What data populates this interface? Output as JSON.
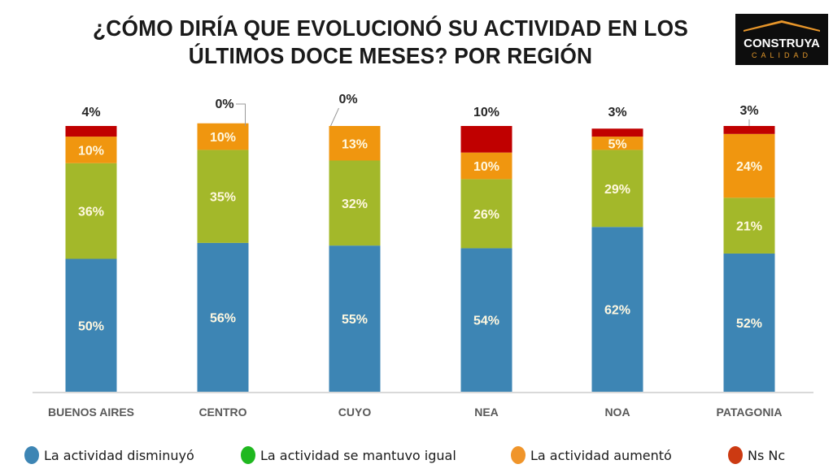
{
  "title_line1": "¿CÓMO DIRÍA QUE EVOLUCIONÓ SU ACTIVIDAD EN LOS",
  "title_line2": "ÚLTIMOS DOCE MESES? POR REGIÓN",
  "logo": {
    "brand": "CONSTRUYA",
    "sub": "CALIDAD",
    "roof_color": "#e8962a"
  },
  "legend": [
    {
      "label": "La actividad disminuyó",
      "color": "#3d85b4"
    },
    {
      "label": "La actividad se mantuvo igual",
      "color": "#1fb81f"
    },
    {
      "label": "La actividad aumentó",
      "color": "#f0952a"
    },
    {
      "label": "Ns Nc",
      "color": "#cc3a12"
    }
  ],
  "chart_data": {
    "type": "bar",
    "stacked": true,
    "title": "¿CÓMO DIRÍA QUE EVOLUCIONÓ SU ACTIVIDAD EN LOS ÚLTIMOS DOCE MESES? POR REGIÓN",
    "xlabel": "",
    "ylabel": "",
    "ylim": [
      0,
      100
    ],
    "grid": false,
    "legend_position": "bottom",
    "categories": [
      "BUENOS AIRES",
      "CENTRO",
      "CUYO",
      "NEA",
      "NOA",
      "PATAGONIA"
    ],
    "series": [
      {
        "name": "La actividad disminuyó",
        "color": "#3d85b4",
        "values": [
          50,
          56,
          55,
          54,
          62,
          52
        ],
        "labels": [
          "50%",
          "56%",
          "55%",
          "54%",
          "62%",
          "52%"
        ]
      },
      {
        "name": "La actividad se mantuvo igual",
        "color": "#a3b82a",
        "values": [
          36,
          35,
          32,
          26,
          29,
          21
        ],
        "labels": [
          "36%",
          "35%",
          "32%",
          "26%",
          "29%",
          "21%"
        ]
      },
      {
        "name": "La actividad aumentó",
        "color": "#f0960f",
        "values": [
          10,
          10,
          13,
          10,
          5,
          24
        ],
        "labels": [
          "10%",
          "10%",
          "13%",
          "10%",
          "5%",
          "24%"
        ]
      },
      {
        "name": "Ns Nc",
        "color": "#c00000",
        "values": [
          4,
          0,
          0,
          10,
          3,
          3
        ],
        "labels": [
          "4%",
          "0%",
          "0%",
          "10%",
          "3%",
          "3%"
        ]
      }
    ]
  }
}
